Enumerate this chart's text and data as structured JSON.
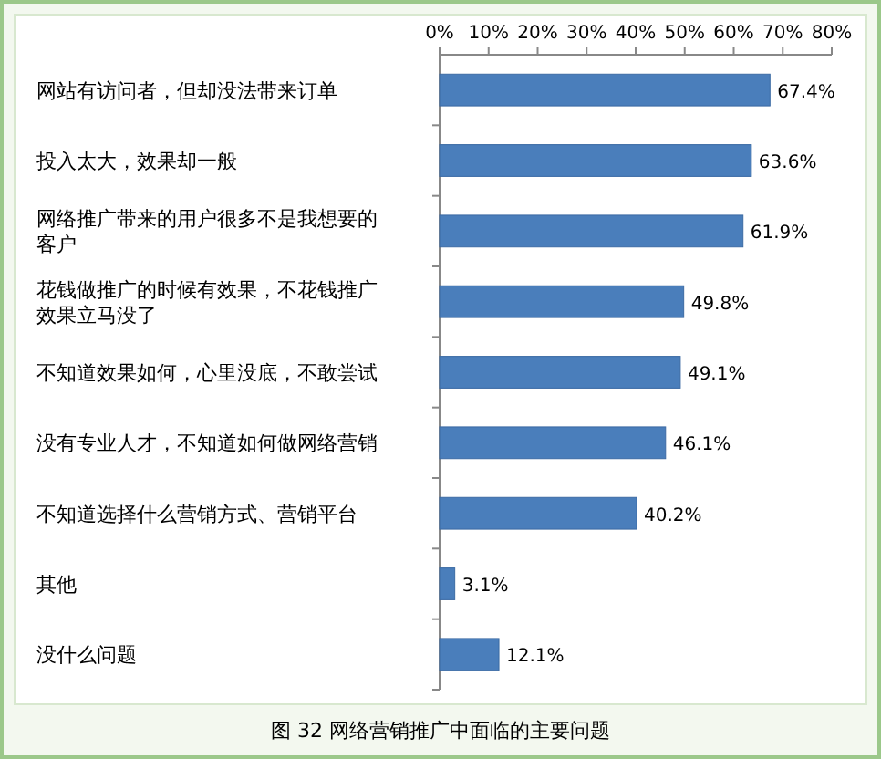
{
  "chart_data": {
    "type": "bar",
    "orientation": "horizontal",
    "annotations": [
      "图 32  网络营销推广中面临的主要问题"
    ],
    "categories": [
      "网站有访问者，但却没法带来订单",
      "投入太大，效果却一般",
      "网络推广带来的用户很多不是我想要的客户",
      "花钱做推广的时候有效果，不花钱推广效果立马没了",
      "不知道效果如何，心里没底，不敢尝试",
      "没有专业人才，不知道如何做网络营销",
      "不知道选择什么营销方式、营销平台",
      "其他",
      "没什么问题"
    ],
    "values": [
      67.4,
      63.6,
      61.9,
      49.8,
      49.1,
      46.1,
      40.2,
      3.1,
      12.1
    ],
    "value_labels": [
      "67.4%",
      "63.6%",
      "61.9%",
      "49.8%",
      "49.1%",
      "46.1%",
      "40.2%",
      "3.1%",
      "12.1%"
    ],
    "color": "#4a7ebb",
    "xlim": [
      0,
      80
    ],
    "xticks": [
      {
        "value": 0,
        "label": "0%"
      },
      {
        "value": 10,
        "label": "10%"
      },
      {
        "value": 20,
        "label": "20%"
      },
      {
        "value": 30,
        "label": "30%"
      },
      {
        "value": 40,
        "label": "40%"
      },
      {
        "value": 50,
        "label": "50%"
      },
      {
        "value": 60,
        "label": "60%"
      },
      {
        "value": 70,
        "label": "70%"
      },
      {
        "value": 80,
        "label": "80%"
      }
    ],
    "grid": false
  }
}
